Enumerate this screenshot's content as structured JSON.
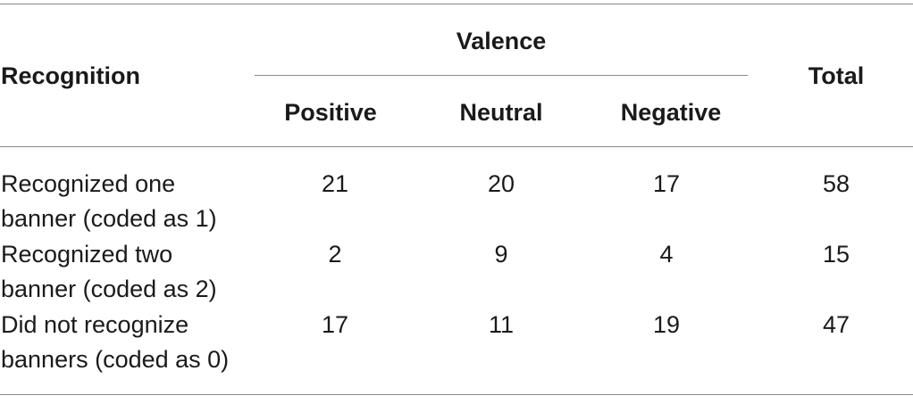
{
  "table": {
    "header": {
      "recognition": "Recognition",
      "valence": "Valence",
      "positive": "Positive",
      "neutral": "Neutral",
      "negative": "Negative",
      "total": "Total"
    },
    "rows": [
      {
        "label_line1": "Recognized one",
        "label_line2": "banner (coded as 1)",
        "positive": "21",
        "neutral": "20",
        "negative": "17",
        "total": "58"
      },
      {
        "label_line1": "Recognized two",
        "label_line2": "banner (coded as 2)",
        "positive": "2",
        "neutral": "9",
        "negative": "4",
        "total": "15"
      },
      {
        "label_line1": "Did not recognize",
        "label_line2": "banners (coded as 0)",
        "positive": "17",
        "neutral": "11",
        "negative": "19",
        "total": "47"
      }
    ]
  }
}
